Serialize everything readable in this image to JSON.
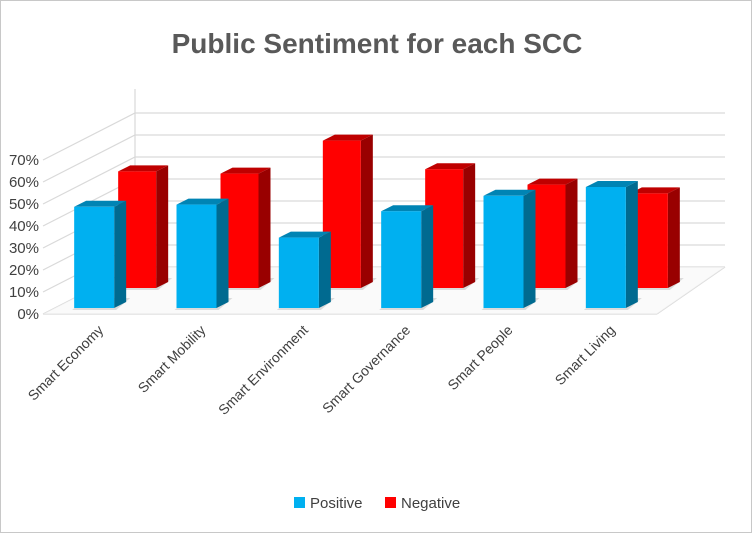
{
  "chart_data": {
    "type": "bar",
    "title": "Public Sentiment for each SCC",
    "categories": [
      "Smart Economy",
      "Smart Mobility",
      "Smart Environment",
      "Smart Governance",
      "Smart People",
      "Smart Living"
    ],
    "series": [
      {
        "name": "Positive",
        "values": [
          46,
          47,
          32,
          44,
          51,
          55
        ],
        "color": "#00B0F0"
      },
      {
        "name": "Negative",
        "values": [
          53,
          52,
          67,
          54,
          47,
          43
        ],
        "color": "#FF0000"
      }
    ],
    "yticks": [
      "0%",
      "10%",
      "20%",
      "30%",
      "40%",
      "50%",
      "60%",
      "70%"
    ],
    "ylim": [
      0,
      70
    ],
    "grid": true,
    "legend_position": "bottom",
    "three_d": true
  }
}
